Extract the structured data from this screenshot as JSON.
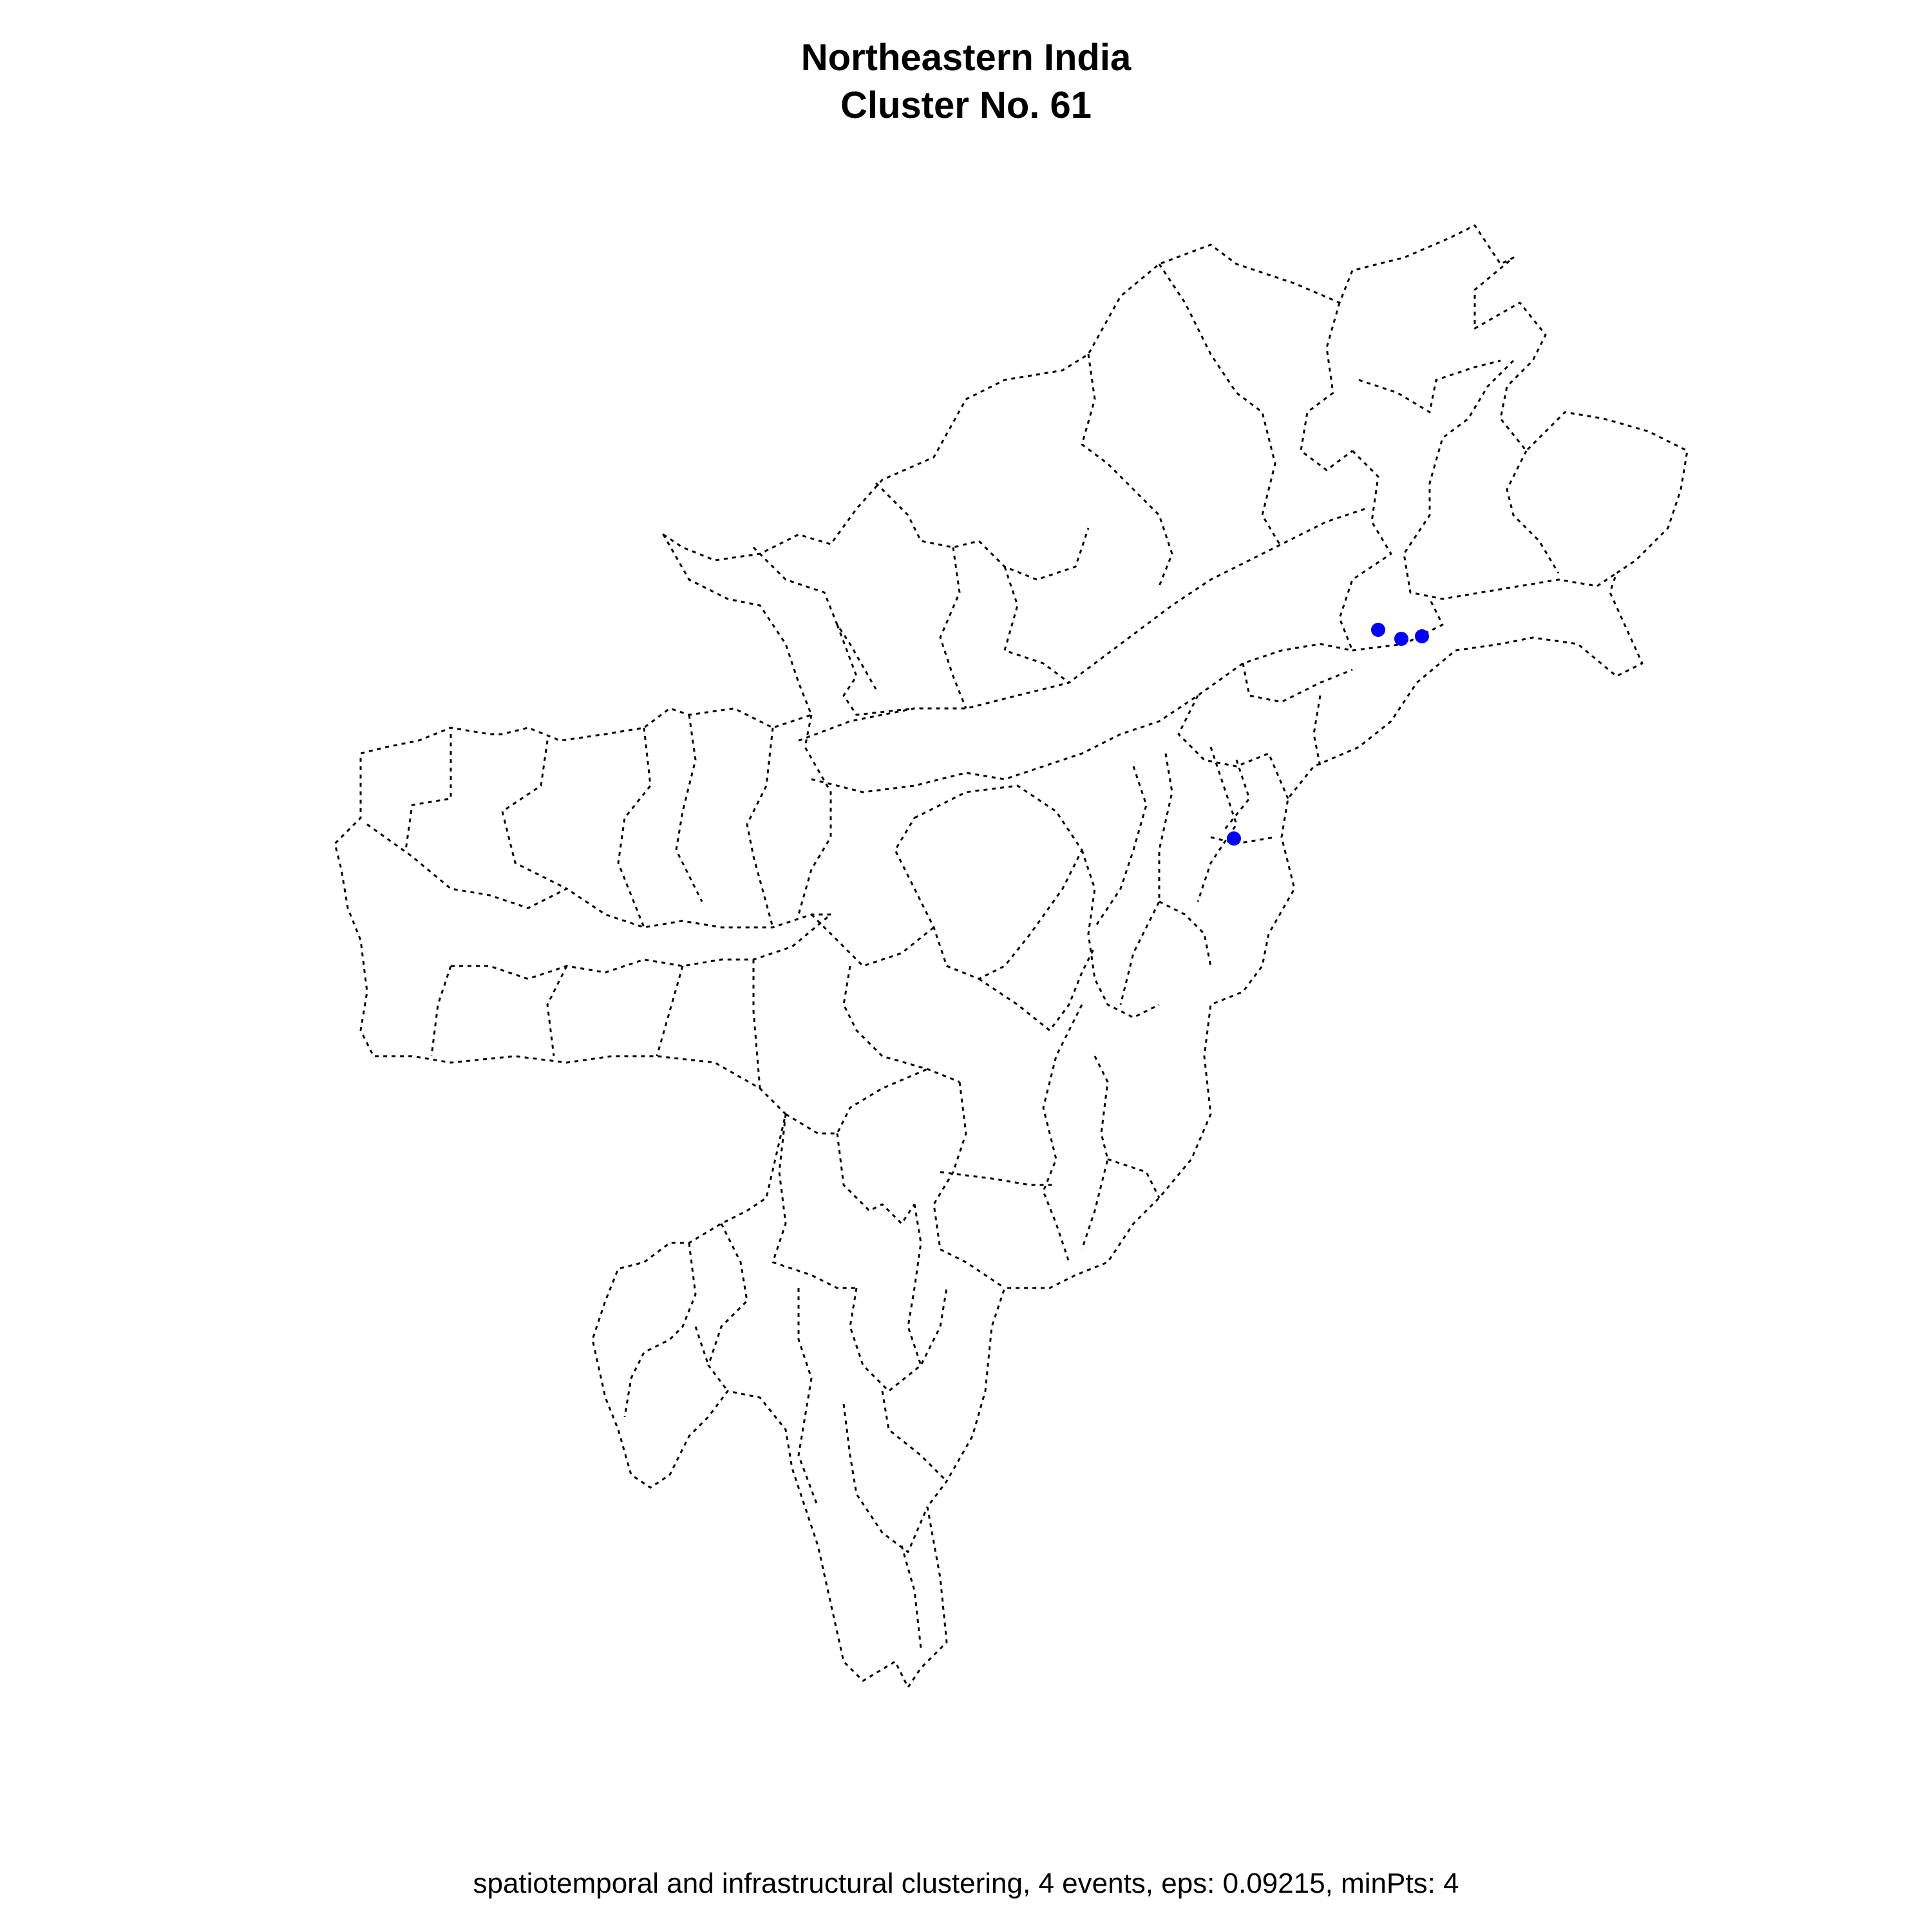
{
  "title": {
    "line1": "Northeastern India",
    "line2": "Cluster No. 61"
  },
  "subtitle": "spatiotemporal and infrastructural clustering, 4 events, eps: 0.09215, minPts: 4",
  "colors": {
    "points": "#0000ff",
    "boundaries": "#000000",
    "background": "#ffffff"
  },
  "map": {
    "region": "Northeastern India",
    "boundary_style": "dotted",
    "point_count": 4
  }
}
